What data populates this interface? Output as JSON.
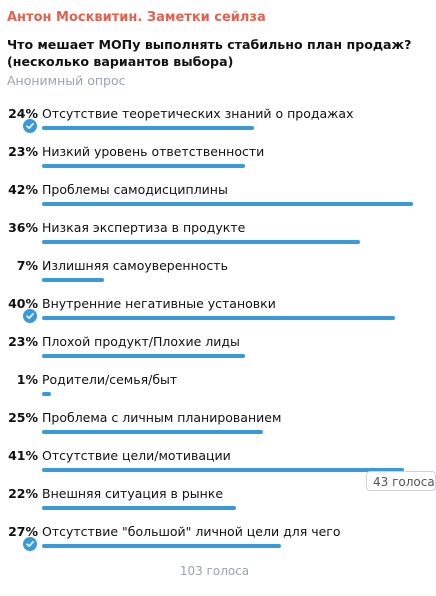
{
  "poll": {
    "channel": "Антон Москвитин. Заметки сейлза",
    "question": "Что мешает МОПу выполнять стабильно план продаж? (несколько вариантов выбора)",
    "type": "Анонимный опрос",
    "total_votes": "103 голоса",
    "tooltip": "43 голоса",
    "accent_color": "#3a9ad9",
    "options": [
      {
        "percent": "24%",
        "label": "Отсутствие теоретических знаний о  продажах",
        "value": 24,
        "checked": true
      },
      {
        "percent": "23%",
        "label": "Низкий уровень ответственности",
        "value": 23,
        "checked": false
      },
      {
        "percent": "42%",
        "label": "Проблемы самодисциплины",
        "value": 42,
        "checked": false
      },
      {
        "percent": "36%",
        "label": "Низкая экспертиза в продукте",
        "value": 36,
        "checked": false
      },
      {
        "percent": "7%",
        "label": "Излишняя самоуверенность",
        "value": 7,
        "checked": false
      },
      {
        "percent": "40%",
        "label": "Внутренние негативные установки",
        "value": 40,
        "checked": true
      },
      {
        "percent": "23%",
        "label": "Плохой продукт/Плохие лиды",
        "value": 23,
        "checked": false
      },
      {
        "percent": "1%",
        "label": "Родители/семья/быт",
        "value": 1,
        "checked": false
      },
      {
        "percent": "25%",
        "label": "Проблема с личным планированием",
        "value": 25,
        "checked": false
      },
      {
        "percent": "41%",
        "label": "Отсутствие цели/мотивации",
        "value": 41,
        "checked": false
      },
      {
        "percent": "22%",
        "label": "Внешняя ситуация в рынке",
        "value": 22,
        "checked": false
      },
      {
        "percent": "27%",
        "label": "Отсутствие \"большой\" личной цели для чего",
        "value": 27,
        "checked": true
      }
    ]
  }
}
